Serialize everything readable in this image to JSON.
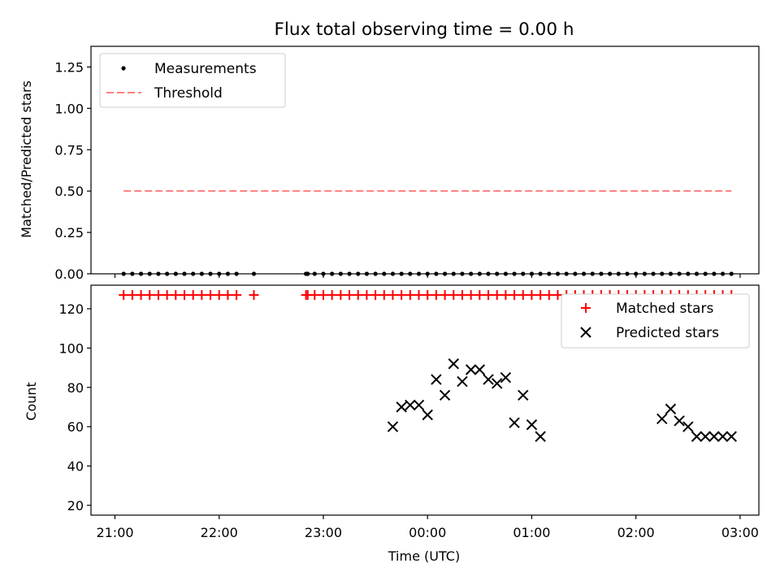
{
  "title": "Flux total observing time = 0.00 h",
  "chart_data": [
    {
      "type": "scatter",
      "ylabel": "Matched/Predicted stars",
      "xlim_hours": [
        20.77,
        27.18
      ],
      "ylim": [
        0,
        1.375
      ],
      "y_ticks": [
        0,
        0.25,
        0.5,
        0.75,
        1.0,
        1.25
      ],
      "y_tick_labels": [
        "0.00",
        "0.25",
        "0.50",
        "0.75",
        "1.00",
        "1.25"
      ],
      "legend": {
        "position": "top-left",
        "entries": [
          {
            "label": "Measurements",
            "marker": "dot",
            "color": "#000000"
          },
          {
            "label": "Threshold",
            "marker": "dashed-line",
            "color": "#ff7f7f"
          }
        ]
      },
      "threshold": {
        "name": "Threshold",
        "y": 0.5,
        "x_from": "21:05",
        "x_to": "02:55",
        "color": "#ff7f7f"
      },
      "series": [
        {
          "name": "Measurements",
          "color": "#000000",
          "x": [
            "21:05",
            "21:10",
            "21:15",
            "21:20",
            "21:25",
            "21:30",
            "21:35",
            "21:40",
            "21:45",
            "21:50",
            "21:55",
            "22:00",
            "22:05",
            "22:10",
            "22:20",
            "22:50",
            "22:51",
            "22:55",
            "23:00",
            "23:05",
            "23:10",
            "23:15",
            "23:20",
            "23:25",
            "23:30",
            "23:35",
            "23:40",
            "23:45",
            "23:50",
            "23:55",
            "00:00",
            "00:05",
            "00:10",
            "00:15",
            "00:20",
            "00:25",
            "00:30",
            "00:35",
            "00:40",
            "00:45",
            "00:50",
            "00:55",
            "01:00",
            "01:05",
            "01:10",
            "01:15",
            "01:20",
            "01:25",
            "01:30",
            "01:35",
            "01:40",
            "01:45",
            "01:50",
            "01:55",
            "02:00",
            "02:05",
            "02:10",
            "02:15",
            "02:20",
            "02:25",
            "02:30",
            "02:35",
            "02:40",
            "02:45",
            "02:50",
            "02:55"
          ],
          "y": [
            0,
            0,
            0,
            0,
            0,
            0,
            0,
            0,
            0,
            0,
            0,
            0,
            0,
            0,
            0,
            0,
            0,
            0,
            0,
            0,
            0,
            0,
            0,
            0,
            0,
            0,
            0,
            0,
            0,
            0,
            0,
            0,
            0,
            0,
            0,
            0,
            0,
            0,
            0,
            0,
            0,
            0,
            0,
            0,
            0,
            0,
            0,
            0,
            0,
            0,
            0,
            0,
            0,
            0,
            0,
            0,
            0,
            0,
            0,
            0,
            0,
            0,
            0,
            0,
            0,
            0
          ]
        }
      ]
    },
    {
      "type": "scatter",
      "xlabel": "Time (UTC)",
      "ylabel": "Count",
      "xlim_hours": [
        20.77,
        27.18
      ],
      "ylim": [
        15,
        132
      ],
      "y_ticks": [
        20,
        40,
        60,
        80,
        100,
        120
      ],
      "x_ticks": [
        "21:00",
        "22:00",
        "23:00",
        "00:00",
        "01:00",
        "02:00",
        "03:00"
      ],
      "legend": {
        "position": "top-right",
        "entries": [
          {
            "label": "Matched stars",
            "marker": "plus",
            "color": "#ff0000"
          },
          {
            "label": "Predicted stars",
            "marker": "x",
            "color": "#000000"
          }
        ]
      },
      "series": [
        {
          "name": "Matched stars",
          "color": "#ff0000",
          "x": [
            "21:05",
            "21:10",
            "21:15",
            "21:20",
            "21:25",
            "21:30",
            "21:35",
            "21:40",
            "21:45",
            "21:50",
            "21:55",
            "22:00",
            "22:05",
            "22:10",
            "22:20",
            "22:50",
            "22:51",
            "22:55",
            "23:00",
            "23:05",
            "23:10",
            "23:15",
            "23:20",
            "23:25",
            "23:30",
            "23:35",
            "23:40",
            "23:45",
            "23:50",
            "23:55",
            "00:00",
            "00:05",
            "00:10",
            "00:15",
            "00:20",
            "00:25",
            "00:30",
            "00:35",
            "00:40",
            "00:45",
            "00:50",
            "00:55",
            "01:00",
            "01:05",
            "01:10",
            "01:15",
            "01:20",
            "01:25",
            "01:30",
            "01:35",
            "01:40",
            "01:45",
            "01:50",
            "01:55",
            "02:00",
            "02:05",
            "02:10",
            "02:15",
            "02:20",
            "02:25",
            "02:30",
            "02:35",
            "02:40",
            "02:45",
            "02:50",
            "02:55"
          ],
          "y": [
            127,
            127,
            127,
            127,
            127,
            127,
            127,
            127,
            127,
            127,
            127,
            127,
            127,
            127,
            127,
            127,
            127,
            127,
            127,
            127,
            127,
            127,
            127,
            127,
            127,
            127,
            127,
            127,
            127,
            127,
            127,
            127,
            127,
            127,
            127,
            127,
            127,
            127,
            127,
            127,
            127,
            127,
            127,
            127,
            127,
            127,
            127,
            127,
            127,
            127,
            127,
            127,
            127,
            127,
            127,
            127,
            127,
            127,
            127,
            127,
            127,
            127,
            127,
            127,
            127,
            127
          ]
        },
        {
          "name": "Predicted stars",
          "color": "#000000",
          "x": [
            "23:40",
            "23:45",
            "23:50",
            "23:55",
            "00:00",
            "00:05",
            "00:10",
            "00:15",
            "00:20",
            "00:25",
            "00:30",
            "00:35",
            "00:40",
            "00:45",
            "00:50",
            "00:55",
            "01:00",
            "01:05",
            "02:15",
            "02:20",
            "02:25",
            "02:30",
            "02:35",
            "02:40",
            "02:45",
            "02:50",
            "02:55"
          ],
          "y": [
            60,
            70,
            71,
            71,
            66,
            84,
            76,
            92,
            83,
            89,
            89,
            84,
            82,
            85,
            62,
            76,
            61,
            55,
            64,
            69,
            63,
            60,
            55,
            55,
            55,
            55,
            55
          ]
        }
      ]
    }
  ]
}
